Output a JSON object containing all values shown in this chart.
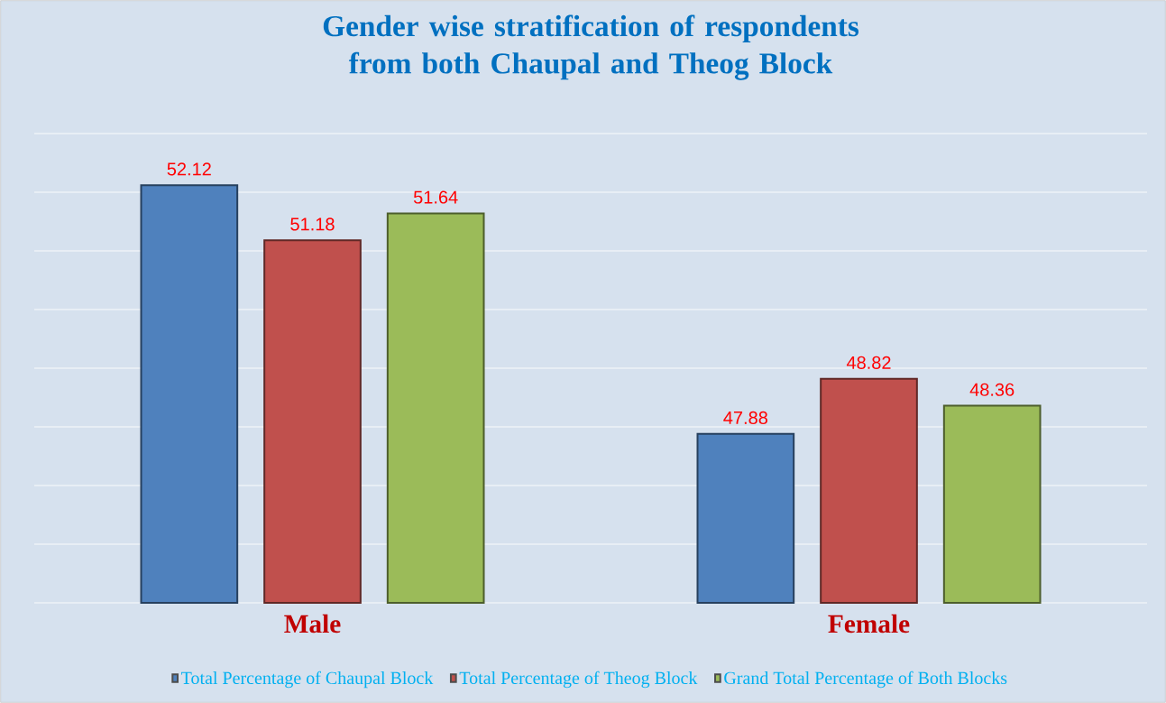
{
  "chart_data": {
    "type": "bar",
    "title": "Gender wise stratification of respondents from both Chaupal and Theog Block",
    "categories": [
      "Male",
      "Female"
    ],
    "series": [
      {
        "name": "Total Percentage of Chaupal Block",
        "color": "#4f81bd",
        "values": [
          52.12,
          47.88
        ]
      },
      {
        "name": "Total Percentage of Theog Block",
        "color": "#c0504d",
        "values": [
          51.18,
          48.82
        ]
      },
      {
        "name": "Grand Total Percentage of Both Blocks",
        "color": "#9bbb59",
        "values": [
          51.64,
          48.36
        ]
      }
    ],
    "ylim": [
      45,
      53
    ],
    "yticks": [
      {
        "value": 45,
        "label": null
      },
      {
        "value": 46,
        "label": null
      },
      {
        "value": 47,
        "label": null
      },
      {
        "value": 48,
        "label": null
      },
      {
        "value": 49,
        "label": null
      },
      {
        "value": 50,
        "label": null
      },
      {
        "value": 51,
        "label": null
      },
      {
        "value": 52,
        "label": null
      },
      {
        "value": 53,
        "label": null
      }
    ],
    "tick_labels": "x",
    "grid": "y",
    "legend": "bottom",
    "data_labels": true
  }
}
